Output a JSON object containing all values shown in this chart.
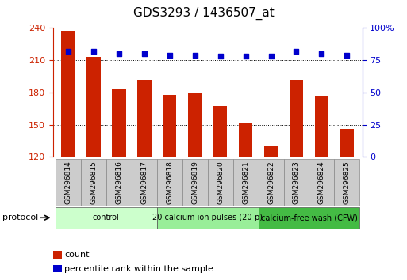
{
  "title": "GDS3293 / 1436507_at",
  "samples": [
    "GSM296814",
    "GSM296815",
    "GSM296816",
    "GSM296817",
    "GSM296818",
    "GSM296819",
    "GSM296820",
    "GSM296821",
    "GSM296822",
    "GSM296823",
    "GSM296824",
    "GSM296825"
  ],
  "counts": [
    237,
    213,
    183,
    192,
    178,
    180,
    167,
    152,
    130,
    192,
    177,
    146
  ],
  "percentile": [
    82,
    82,
    80,
    80,
    79,
    79,
    78,
    78,
    78,
    82,
    80,
    79
  ],
  "ylim_left": [
    120,
    240
  ],
  "ylim_right": [
    0,
    100
  ],
  "yticks_left": [
    120,
    150,
    180,
    210,
    240
  ],
  "yticks_right": [
    0,
    25,
    50,
    75,
    100
  ],
  "bar_color": "#cc2200",
  "dot_color": "#0000cc",
  "bg_color": "#ffffff",
  "tick_bg": "#cccccc",
  "groups": [
    {
      "label": "control",
      "start": 0,
      "end": 4,
      "color": "#ccffcc"
    },
    {
      "label": "20 calcium ion pulses (20-p)",
      "start": 4,
      "end": 8,
      "color": "#99ee99"
    },
    {
      "label": "calcium-free wash (CFW)",
      "start": 8,
      "end": 12,
      "color": "#44bb44"
    }
  ],
  "protocol_label": "protocol",
  "legend_count": "count",
  "legend_pct": "percentile rank within the sample",
  "gridlines": [
    150,
    180,
    210
  ]
}
